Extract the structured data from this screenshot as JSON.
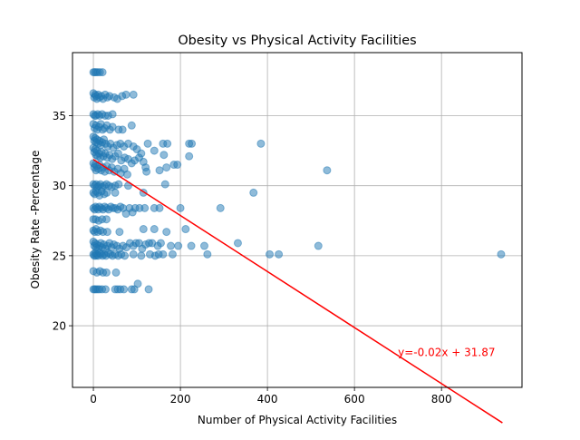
{
  "chart_data": {
    "type": "scatter",
    "title": "Obesity vs Physical Activity Facilities",
    "xlabel": "Number of Physical Activity Facilities",
    "ylabel": "Obesity Rate -Percentage",
    "xlim": [
      -48,
      985
    ],
    "ylim": [
      15.6,
      39.5
    ],
    "x_ticks": [
      0,
      200,
      400,
      600,
      800
    ],
    "y_ticks": [
      20,
      25,
      30,
      35
    ],
    "grid": true,
    "colors": {
      "points": "#1f77b4",
      "fit_line": "#ff0000",
      "annotation": "#ff0000",
      "grid": "#b0b0b0"
    },
    "fit": {
      "slope": -0.02,
      "intercept": 31.87,
      "label": "y=-0.02x + 31.87",
      "x_range": [
        0,
        940
      ]
    },
    "annotation_position": [
      700,
      18.1
    ],
    "points": [
      [
        0,
        38.1
      ],
      [
        3,
        38.1
      ],
      [
        6,
        38.1
      ],
      [
        10,
        38.1
      ],
      [
        15,
        38.1
      ],
      [
        21,
        38.1
      ],
      [
        0,
        36.6
      ],
      [
        2,
        36.3
      ],
      [
        4,
        36.5
      ],
      [
        6,
        36.4
      ],
      [
        8,
        36.2
      ],
      [
        11,
        36.5
      ],
      [
        14,
        36.3
      ],
      [
        18,
        36.4
      ],
      [
        22,
        36.2
      ],
      [
        27,
        36.5
      ],
      [
        32,
        36.3
      ],
      [
        37,
        36.4
      ],
      [
        48,
        36.3
      ],
      [
        55,
        36.2
      ],
      [
        66,
        36.4
      ],
      [
        75,
        36.5
      ],
      [
        92,
        36.5
      ],
      [
        0,
        35.1
      ],
      [
        3,
        35.0
      ],
      [
        6,
        35.0
      ],
      [
        10,
        35.1
      ],
      [
        14,
        35.0
      ],
      [
        20,
        35.1
      ],
      [
        27,
        35.0
      ],
      [
        34,
        35.0
      ],
      [
        44,
        35.1
      ],
      [
        0,
        34.4
      ],
      [
        3,
        34.1
      ],
      [
        6,
        34.3
      ],
      [
        9,
        34.0
      ],
      [
        13,
        34.2
      ],
      [
        17,
        34.4
      ],
      [
        21,
        34.0
      ],
      [
        26,
        34.1
      ],
      [
        31,
        34.3
      ],
      [
        38,
        34.0
      ],
      [
        44,
        34.2
      ],
      [
        58,
        34.0
      ],
      [
        67,
        34.0
      ],
      [
        88,
        34.3
      ],
      [
        0,
        33.5
      ],
      [
        2,
        33.2
      ],
      [
        4,
        33.4
      ],
      [
        6,
        33.1
      ],
      [
        8,
        33.3
      ],
      [
        11,
        33.0
      ],
      [
        14,
        33.2
      ],
      [
        17,
        32.9
      ],
      [
        20,
        33.1
      ],
      [
        24,
        33.3
      ],
      [
        28,
        33.0
      ],
      [
        33,
        32.8
      ],
      [
        39,
        33.0
      ],
      [
        46,
        32.7
      ],
      [
        54,
        32.9
      ],
      [
        62,
        33.0
      ],
      [
        70,
        32.8
      ],
      [
        80,
        33.0
      ],
      [
        92,
        32.8
      ],
      [
        100,
        32.6
      ],
      [
        110,
        32.3
      ],
      [
        125,
        33.0
      ],
      [
        140,
        32.5
      ],
      [
        160,
        33.0
      ],
      [
        170,
        33.0
      ],
      [
        220,
        33.0
      ],
      [
        226,
        33.0
      ],
      [
        385,
        33.0
      ],
      [
        0,
        32.7
      ],
      [
        2,
        32.4
      ],
      [
        4,
        32.6
      ],
      [
        6,
        32.2
      ],
      [
        8,
        32.5
      ],
      [
        10,
        32.1
      ],
      [
        13,
        32.3
      ],
      [
        16,
        32.0
      ],
      [
        19,
        32.4
      ],
      [
        23,
        32.1
      ],
      [
        27,
        32.3
      ],
      [
        32,
        32.0
      ],
      [
        37,
        32.2
      ],
      [
        43,
        31.9
      ],
      [
        50,
        32.1
      ],
      [
        57,
        32.3
      ],
      [
        64,
        31.8
      ],
      [
        72,
        32.0
      ],
      [
        80,
        31.9
      ],
      [
        88,
        31.6
      ],
      [
        95,
        31.8
      ],
      [
        105,
        32.0
      ],
      [
        115,
        31.7
      ],
      [
        162,
        32.2
      ],
      [
        220,
        32.1
      ],
      [
        0,
        31.6
      ],
      [
        2,
        31.3
      ],
      [
        4,
        31.5
      ],
      [
        6,
        31.1
      ],
      [
        8,
        31.4
      ],
      [
        11,
        31.2
      ],
      [
        14,
        31.5
      ],
      [
        18,
        31.1
      ],
      [
        22,
        31.3
      ],
      [
        26,
        31.0
      ],
      [
        31,
        31.4
      ],
      [
        36,
        31.1
      ],
      [
        42,
        31.3
      ],
      [
        48,
        31.0
      ],
      [
        56,
        31.2
      ],
      [
        63,
        30.9
      ],
      [
        71,
        31.2
      ],
      [
        78,
        30.8
      ],
      [
        120,
        31.3
      ],
      [
        122,
        31.0
      ],
      [
        152,
        31.1
      ],
      [
        168,
        31.3
      ],
      [
        185,
        31.5
      ],
      [
        193,
        31.5
      ],
      [
        537,
        31.1
      ],
      [
        0,
        30.1
      ],
      [
        3,
        30.0
      ],
      [
        6,
        30.1
      ],
      [
        9,
        29.9
      ],
      [
        12,
        30.0
      ],
      [
        16,
        30.1
      ],
      [
        20,
        29.9
      ],
      [
        25,
        30.0
      ],
      [
        30,
        30.1
      ],
      [
        36,
        30.0
      ],
      [
        42,
        29.9
      ],
      [
        50,
        30.0
      ],
      [
        58,
        30.1
      ],
      [
        80,
        30.0
      ],
      [
        165,
        30.1
      ],
      [
        0,
        29.5
      ],
      [
        3,
        29.4
      ],
      [
        6,
        29.6
      ],
      [
        10,
        29.5
      ],
      [
        14,
        29.3
      ],
      [
        19,
        29.6
      ],
      [
        25,
        29.4
      ],
      [
        31,
        29.5
      ],
      [
        50,
        29.5
      ],
      [
        115,
        29.5
      ],
      [
        368,
        29.5
      ],
      [
        0,
        28.4
      ],
      [
        3,
        28.3
      ],
      [
        5,
        28.5
      ],
      [
        8,
        28.4
      ],
      [
        11,
        28.3
      ],
      [
        14,
        28.5
      ],
      [
        18,
        28.4
      ],
      [
        22,
        28.3
      ],
      [
        26,
        28.5
      ],
      [
        30,
        28.4
      ],
      [
        35,
        28.3
      ],
      [
        40,
        28.5
      ],
      [
        45,
        28.4
      ],
      [
        50,
        28.4
      ],
      [
        56,
        28.3
      ],
      [
        62,
        28.5
      ],
      [
        68,
        28.4
      ],
      [
        75,
        28.0
      ],
      [
        83,
        28.4
      ],
      [
        90,
        28.1
      ],
      [
        96,
        28.4
      ],
      [
        106,
        28.4
      ],
      [
        118,
        28.4
      ],
      [
        140,
        28.4
      ],
      [
        152,
        28.4
      ],
      [
        200,
        28.4
      ],
      [
        292,
        28.4
      ],
      [
        0,
        27.6
      ],
      [
        5,
        27.6
      ],
      [
        12,
        27.5
      ],
      [
        20,
        27.6
      ],
      [
        30,
        27.6
      ],
      [
        0,
        26.8
      ],
      [
        3,
        26.7
      ],
      [
        6,
        26.9
      ],
      [
        10,
        26.7
      ],
      [
        16,
        26.8
      ],
      [
        22,
        26.7
      ],
      [
        32,
        26.7
      ],
      [
        60,
        26.7
      ],
      [
        115,
        26.9
      ],
      [
        140,
        26.9
      ],
      [
        168,
        26.7
      ],
      [
        212,
        26.9
      ],
      [
        0,
        26.0
      ],
      [
        2,
        25.7
      ],
      [
        4,
        25.9
      ],
      [
        6,
        25.6
      ],
      [
        8,
        25.8
      ],
      [
        11,
        25.5
      ],
      [
        14,
        25.7
      ],
      [
        17,
        25.9
      ],
      [
        20,
        25.6
      ],
      [
        24,
        25.8
      ],
      [
        28,
        25.5
      ],
      [
        32,
        25.7
      ],
      [
        37,
        25.9
      ],
      [
        42,
        25.6
      ],
      [
        47,
        25.8
      ],
      [
        54,
        25.7
      ],
      [
        60,
        25.5
      ],
      [
        68,
        25.7
      ],
      [
        76,
        25.6
      ],
      [
        84,
        25.9
      ],
      [
        92,
        25.7
      ],
      [
        98,
        25.9
      ],
      [
        105,
        25.9
      ],
      [
        112,
        25.5
      ],
      [
        120,
        25.8
      ],
      [
        128,
        25.9
      ],
      [
        135,
        25.9
      ],
      [
        148,
        25.7
      ],
      [
        155,
        25.9
      ],
      [
        178,
        25.7
      ],
      [
        195,
        25.7
      ],
      [
        225,
        25.7
      ],
      [
        255,
        25.7
      ],
      [
        332,
        25.9
      ],
      [
        517,
        25.7
      ],
      [
        0,
        25.1
      ],
      [
        2,
        25.0
      ],
      [
        4,
        25.2
      ],
      [
        6,
        25.0
      ],
      [
        8,
        25.1
      ],
      [
        11,
        25.0
      ],
      [
        14,
        25.2
      ],
      [
        17,
        25.1
      ],
      [
        21,
        25.0
      ],
      [
        25,
        25.1
      ],
      [
        29,
        25.0
      ],
      [
        34,
        25.2
      ],
      [
        39,
        25.1
      ],
      [
        44,
        25.0
      ],
      [
        50,
        25.1
      ],
      [
        57,
        25.0
      ],
      [
        64,
        25.1
      ],
      [
        72,
        25.0
      ],
      [
        92,
        25.1
      ],
      [
        110,
        25.0
      ],
      [
        130,
        25.1
      ],
      [
        142,
        25.0
      ],
      [
        150,
        25.1
      ],
      [
        160,
        25.1
      ],
      [
        182,
        25.1
      ],
      [
        262,
        25.1
      ],
      [
        405,
        25.1
      ],
      [
        426,
        25.1
      ],
      [
        937,
        25.1
      ],
      [
        0,
        23.9
      ],
      [
        8,
        23.8
      ],
      [
        15,
        23.9
      ],
      [
        22,
        23.8
      ],
      [
        30,
        23.8
      ],
      [
        52,
        23.8
      ],
      [
        0,
        22.6
      ],
      [
        3,
        22.6
      ],
      [
        6,
        22.6
      ],
      [
        10,
        22.6
      ],
      [
        14,
        22.6
      ],
      [
        20,
        22.6
      ],
      [
        28,
        22.6
      ],
      [
        50,
        22.6
      ],
      [
        56,
        22.6
      ],
      [
        62,
        22.6
      ],
      [
        70,
        22.6
      ],
      [
        88,
        22.6
      ],
      [
        94,
        22.6
      ],
      [
        102,
        23.0
      ],
      [
        127,
        22.6
      ]
    ]
  }
}
